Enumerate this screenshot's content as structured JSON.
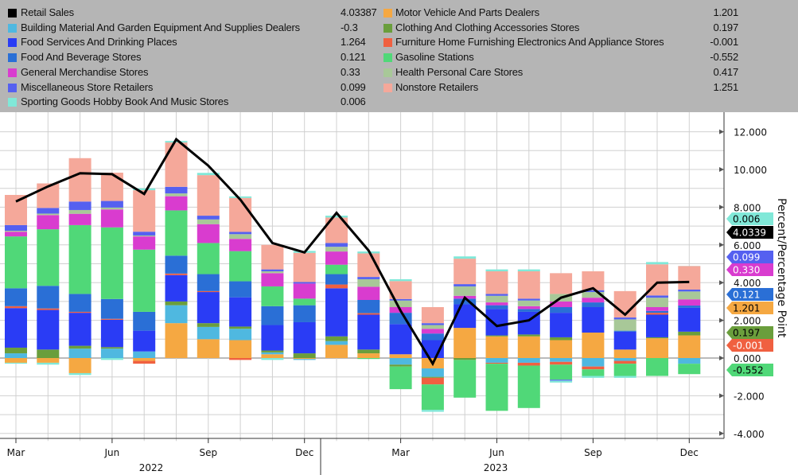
{
  "chart_data": {
    "type": "bar",
    "subtype": "stacked bar with line overlay",
    "ylabel": "Percent/Percentage Point",
    "ylim": [
      -4,
      12
    ],
    "yticks": [
      "12.000",
      "10.000",
      "8.000",
      "6.000",
      "4.000",
      "2.000",
      "0.000",
      "-2.000",
      "-4.000"
    ],
    "grid": true,
    "legend_position": "top",
    "x": [
      "2022-03",
      "2022-04",
      "2022-05",
      "2022-06",
      "2022-07",
      "2022-08",
      "2022-09",
      "2022-10",
      "2022-11",
      "2022-12",
      "2023-01",
      "2023-02",
      "2023-03",
      "2023-04",
      "2023-05",
      "2023-06",
      "2023-07",
      "2023-08",
      "2023-09",
      "2023-10",
      "2023-11",
      "2023-12"
    ],
    "xtick_labels": [
      "Mar",
      "Jun",
      "Sep",
      "Dec",
      "Mar",
      "Jun",
      "Sep",
      "Dec"
    ],
    "year_labels": [
      "2022",
      "2023"
    ],
    "line_series": {
      "name": "Retail Sales",
      "color": "#000000",
      "last": "4.03387",
      "tag": "4.0339",
      "values": [
        8.3,
        9.1,
        9.8,
        9.75,
        8.7,
        11.6,
        10.2,
        8.4,
        6.1,
        5.6,
        7.7,
        5.7,
        2.5,
        -0.3,
        3.2,
        1.7,
        2.0,
        3.2,
        3.7,
        2.3,
        4.0,
        4.03387
      ]
    },
    "series": [
      {
        "name": "Motor Vehicle And Parts Dealers",
        "last": "1.201",
        "color": "#f5a842",
        "values": [
          -0.25,
          -0.25,
          -0.8,
          0,
          -0.15,
          1.85,
          1.0,
          0.95,
          0.2,
          -0.05,
          0.7,
          0.25,
          0.2,
          -0.55,
          1.6,
          1.15,
          1.15,
          0.95,
          1.35,
          0.45,
          1.05,
          1.201
        ]
      },
      {
        "name": "Building Material And Garden Equipment And Supplies Dealers",
        "last": "-0.3",
        "color": "#4fb8e0",
        "values": [
          0.25,
          0,
          0.5,
          0.5,
          0.35,
          0.95,
          0.65,
          0.6,
          0.1,
          -0.05,
          0.2,
          0,
          -0.35,
          -0.45,
          0,
          -0.25,
          -0.25,
          -0.2,
          -0.45,
          -0.15,
          0,
          -0.3
        ]
      },
      {
        "name": "Clothing And Clothing Accessories Stores",
        "last": "0.197",
        "color": "#6a9e3c",
        "values": [
          0.3,
          0.45,
          0.15,
          0.08,
          0,
          0.2,
          0.2,
          0.12,
          0.1,
          0.25,
          0.25,
          0.2,
          -0.1,
          -0.05,
          -0.1,
          0.05,
          0.1,
          0.15,
          0,
          0,
          0.05,
          0.197
        ]
      },
      {
        "name": "Food Services And Drinking Places",
        "last": "1.264",
        "color": "#2a3cf5",
        "values": [
          2.1,
          2.1,
          1.75,
          1.45,
          1.1,
          1.4,
          1.65,
          1.55,
          1.35,
          1.65,
          2.55,
          1.85,
          1.6,
          0.95,
          1.25,
          1.4,
          1.2,
          1.3,
          1.35,
          0.95,
          1.2,
          1.264
        ]
      },
      {
        "name": "Furniture Home Furnishing Electronics And Appliance Stores",
        "last": "-0.001",
        "color": "#f06040",
        "values": [
          0.1,
          0.08,
          0.05,
          0.05,
          -0.15,
          0.08,
          0.05,
          -0.1,
          0,
          0,
          0.2,
          0.08,
          0,
          -0.35,
          0,
          -0.05,
          -0.15,
          -0.15,
          -0.15,
          -0.15,
          0.1,
          -0.001
        ]
      },
      {
        "name": "Food And Beverage Stores",
        "last": "0.121",
        "color": "#2a6fd6",
        "values": [
          0.95,
          1.2,
          0.95,
          1.05,
          1.0,
          0.95,
          0.9,
          0.85,
          1.0,
          0.9,
          0.55,
          0.7,
          0.6,
          0.35,
          0.3,
          0.2,
          0.15,
          0.3,
          0.25,
          0.05,
          0.1,
          0.121
        ]
      },
      {
        "name": "Gasoline Stations",
        "last": "-0.552",
        "color": "#50d878",
        "values": [
          2.75,
          3.0,
          3.65,
          3.8,
          3.3,
          2.4,
          1.65,
          1.6,
          1.05,
          0.35,
          0.5,
          -0.05,
          -1.2,
          -1.35,
          -2.0,
          -2.5,
          -2.25,
          -0.8,
          -0.35,
          -0.65,
          -0.95,
          -0.552
        ]
      },
      {
        "name": "General Merchandise Stores",
        "last": "0.33",
        "color": "#d93ccf",
        "values": [
          0.25,
          0.75,
          0.6,
          0.95,
          0.7,
          0.75,
          1.0,
          0.65,
          0.7,
          0.8,
          0.7,
          0.7,
          0.3,
          0.25,
          0.15,
          0.15,
          0.15,
          0.3,
          0.25,
          0,
          0.2,
          0.33
        ]
      },
      {
        "name": "Health Personal Care Stores",
        "last": "0.417",
        "color": "#a8c898",
        "values": [
          0.05,
          0.08,
          0.2,
          0.1,
          0.05,
          0.15,
          0.25,
          0.25,
          0.1,
          0,
          0.25,
          0.4,
          0.35,
          0.2,
          0.5,
          0.35,
          0.3,
          0.4,
          0.3,
          0.6,
          0.5,
          0.417
        ]
      },
      {
        "name": "Miscellaneous Store Retailers",
        "last": "0.099",
        "color": "#5560f0",
        "values": [
          0.3,
          0.3,
          0.45,
          0.35,
          0.2,
          0.35,
          0.2,
          0.12,
          0.1,
          0.08,
          0.2,
          0.12,
          0.08,
          0.1,
          0.12,
          0.1,
          0.1,
          -0.05,
          0.1,
          0.1,
          0.12,
          0.099
        ]
      },
      {
        "name": "Nonstore Retailers",
        "last": "1.251",
        "color": "#f5a89a",
        "values": [
          1.6,
          1.3,
          2.3,
          1.5,
          2.2,
          2.35,
          2.15,
          1.8,
          1.3,
          1.55,
          1.35,
          1.25,
          0.95,
          0.85,
          1.35,
          1.2,
          1.45,
          1.1,
          1.0,
          1.4,
          1.65,
          1.251
        ]
      },
      {
        "name": "Sporting Goods Hobby Book And Music Stores",
        "last": "0.006",
        "color": "#80e8d8",
        "values": [
          -0.05,
          -0.1,
          -0.1,
          -0.1,
          0.1,
          0.08,
          0.12,
          0.08,
          -0.1,
          0.1,
          0.1,
          0.1,
          0.1,
          -0.1,
          0.12,
          0.1,
          0.1,
          -0.1,
          -0.1,
          -0.1,
          0.12,
          0.006
        ]
      }
    ]
  },
  "legend": {
    "left": [
      {
        "name": "Retail Sales",
        "value": "4.03387",
        "color": "#000000"
      },
      {
        "name": "Building Material And Garden Equipment And Supplies Dealers",
        "value": "-0.3",
        "color": "#4fb8e0"
      },
      {
        "name": "Food Services And Drinking Places",
        "value": "1.264",
        "color": "#2a3cf5"
      },
      {
        "name": "Food And Beverage Stores",
        "value": "0.121",
        "color": "#2a6fd6"
      },
      {
        "name": "General Merchandise Stores",
        "value": "0.33",
        "color": "#d93ccf"
      },
      {
        "name": "Miscellaneous Store Retailers",
        "value": "0.099",
        "color": "#5560f0"
      },
      {
        "name": "Sporting Goods Hobby Book And Music Stores",
        "value": "0.006",
        "color": "#80e8d8"
      }
    ],
    "right": [
      {
        "name": "Motor Vehicle And Parts Dealers",
        "value": "1.201",
        "color": "#f5a842"
      },
      {
        "name": "Clothing And Clothing Accessories Stores",
        "value": "0.197",
        "color": "#6a9e3c"
      },
      {
        "name": "Furniture Home Furnishing Electronics And Appliance Stores",
        "value": "-0.001",
        "color": "#f06040"
      },
      {
        "name": "Gasoline Stations",
        "value": "-0.552",
        "color": "#50d878"
      },
      {
        "name": "Health Personal Care Stores",
        "value": "0.417",
        "color": "#a8c898"
      },
      {
        "name": "Nonstore Retailers",
        "value": "1.251",
        "color": "#f5a89a"
      }
    ]
  },
  "value_tags": [
    {
      "label": "0.006",
      "color": "#80e8d8",
      "text_color": "#000000"
    },
    {
      "label": "4.0339",
      "color": "#000000",
      "text_color": "#ffffff"
    },
    {
      "label": "0.099",
      "color": "#5560f0",
      "text_color": "#ffffff"
    },
    {
      "label": "0.330",
      "color": "#d93ccf",
      "text_color": "#ffffff"
    },
    {
      "label": "0.121",
      "color": "#2a6fd6",
      "text_color": "#ffffff"
    },
    {
      "label": "1.201",
      "color": "#f5a842",
      "text_color": "#000000"
    },
    {
      "label": "0.197",
      "color": "#6a9e3c",
      "text_color": "#000000"
    },
    {
      "label": "-0.001",
      "color": "#f06040",
      "text_color": "#ffffff"
    },
    {
      "label": "-0.552",
      "color": "#50d878",
      "text_color": "#000000"
    }
  ]
}
